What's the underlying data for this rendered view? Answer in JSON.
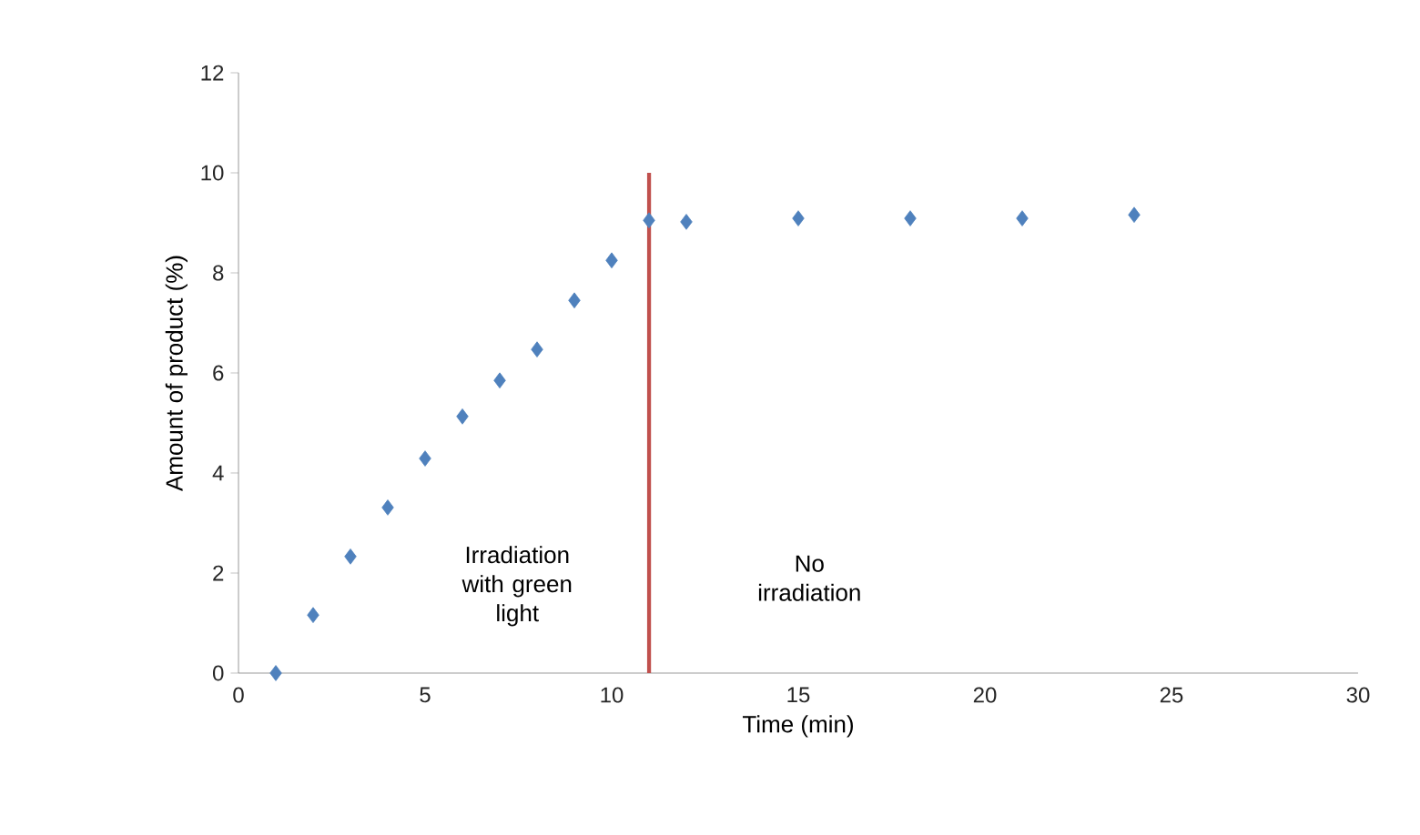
{
  "chart_data": {
    "type": "scatter",
    "xlabel": "Time (min)",
    "ylabel": "Amount of product (%)",
    "xlim": [
      0,
      30
    ],
    "xticks": [
      0,
      5,
      10,
      15,
      20,
      25,
      30
    ],
    "ylim": [
      0,
      12
    ],
    "yticks": [
      0,
      2,
      4,
      6,
      8,
      10,
      12
    ],
    "grid": false,
    "marker": "diamond",
    "series": [
      {
        "color": "#4f81bd",
        "x": [
          1,
          2,
          3,
          4,
          5,
          6,
          7,
          8,
          9,
          10,
          11,
          12,
          15,
          18,
          21,
          24
        ],
        "values": [
          0,
          1.16,
          2.33,
          3.31,
          4.29,
          5.13,
          5.85,
          6.47,
          7.45,
          8.25,
          9.05,
          9.02,
          9.09,
          9.09,
          9.09,
          9.16
        ]
      },
      {
        "type": "line",
        "marker": "none",
        "color": "#c0504d",
        "x": [
          11,
          11
        ],
        "values": [
          0,
          10
        ]
      }
    ],
    "annotations": [
      "Irradiation with green light",
      "No irradiation"
    ]
  }
}
